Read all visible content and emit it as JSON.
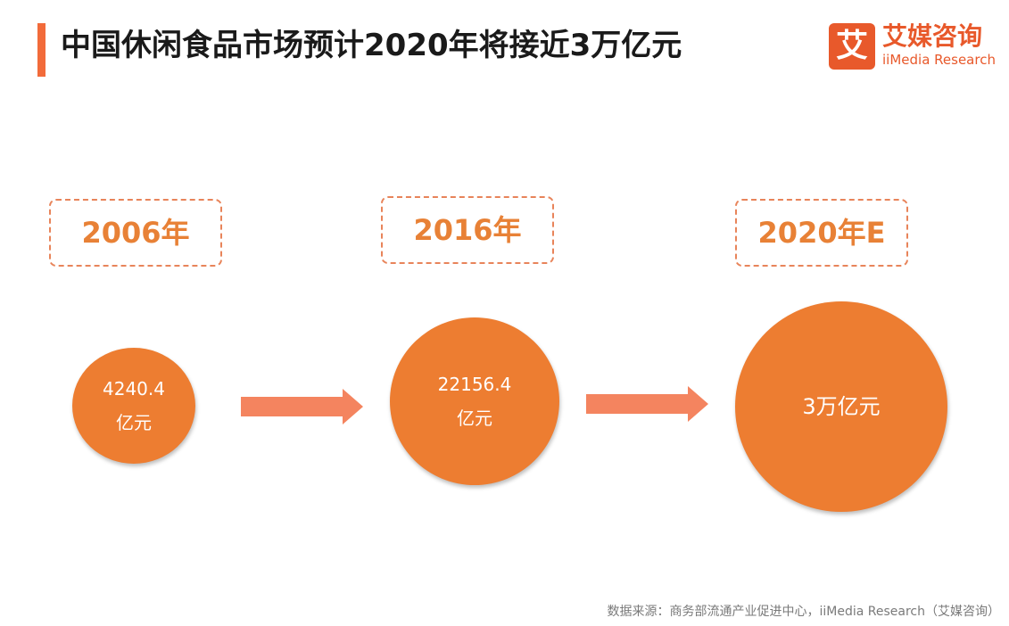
{
  "title": "中国休闲食品市场预计2020年将接近3万亿元",
  "logo": {
    "mark": "艾",
    "cn": "艾媒咨询",
    "en": "iiMedia Research"
  },
  "colors": {
    "accent": "#ed7d31",
    "arrow": "#f4845f",
    "dashed": "#e8845a"
  },
  "timeline": [
    {
      "year": "2006年",
      "value": "4240.4",
      "unit": "亿元"
    },
    {
      "year": "2016年",
      "value": "22156.4",
      "unit": "亿元"
    },
    {
      "year": "2020年E",
      "value": "3万亿元",
      "unit": ""
    }
  ],
  "source": "数据来源：商务部流通产业促进中心，iiMedia Research（艾媒咨询）"
}
